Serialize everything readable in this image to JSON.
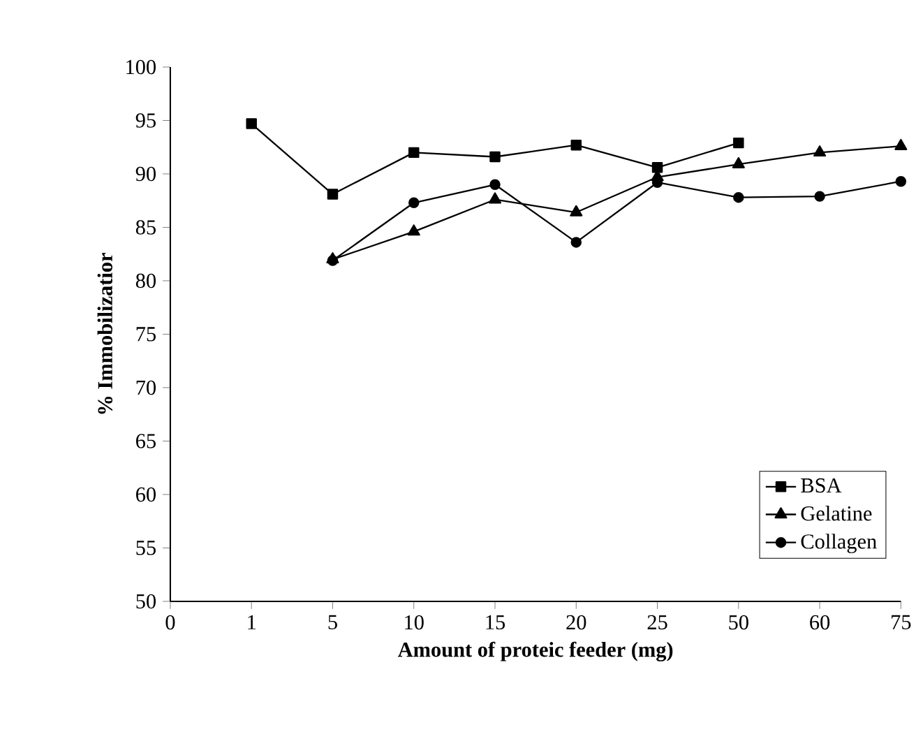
{
  "chart_data": {
    "type": "line",
    "xlabel": "Amount of proteic feeder (mg)",
    "ylabel": "% Immobilizatior",
    "categories": [
      "0",
      "1",
      "5",
      "10",
      "15",
      "20",
      "25",
      "50",
      "60",
      "75"
    ],
    "ylim": [
      50,
      100
    ],
    "yticks": [
      50,
      55,
      60,
      65,
      70,
      75,
      80,
      85,
      90,
      95,
      100
    ],
    "legend": "bottom right",
    "grid": false,
    "line_style": "solid",
    "series": [
      {
        "name": "BSA",
        "color": "#000000",
        "marker": "square",
        "values": [
          null,
          94.7,
          88.1,
          92.0,
          91.6,
          92.7,
          90.6,
          92.9,
          null,
          null
        ]
      },
      {
        "name": "Gelatine",
        "color": "#000000",
        "marker": "triangle",
        "values": [
          null,
          null,
          82.0,
          84.6,
          87.6,
          86.4,
          89.7,
          90.9,
          92.0,
          92.6
        ]
      },
      {
        "name": "Collagen",
        "color": "#000000",
        "marker": "circle",
        "values": [
          null,
          null,
          81.9,
          87.3,
          89.0,
          83.6,
          89.2,
          87.8,
          87.9,
          89.3
        ]
      }
    ]
  }
}
